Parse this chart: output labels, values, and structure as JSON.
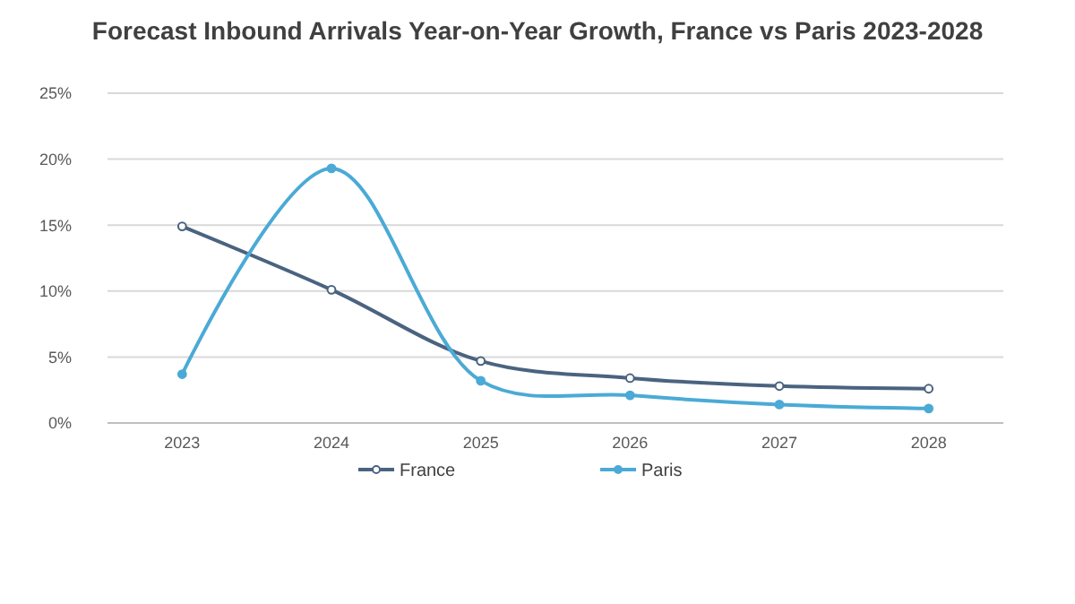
{
  "chart_data": {
    "type": "line",
    "title": "Forecast Inbound Arrivals Year-on-Year Growth, France vs Paris 2023-2028",
    "categories": [
      "2023",
      "2024",
      "2025",
      "2026",
      "2027",
      "2028"
    ],
    "series": [
      {
        "name": "France",
        "color": "#4a6380",
        "values": [
          14.9,
          10.1,
          4.7,
          3.4,
          2.8,
          2.6
        ]
      },
      {
        "name": "Paris",
        "color": "#4baad6",
        "values": [
          3.7,
          19.3,
          3.2,
          2.1,
          1.4,
          1.1
        ]
      }
    ],
    "ylim": [
      0,
      25
    ],
    "yticks": [
      {
        "value": 0,
        "label": "0%"
      },
      {
        "value": 5,
        "label": "5%"
      },
      {
        "value": 10,
        "label": "10%"
      },
      {
        "value": 15,
        "label": "15%"
      },
      {
        "value": 20,
        "label": "20%"
      },
      {
        "value": 25,
        "label": "25%"
      }
    ],
    "grid": "y",
    "legend": "bottom",
    "marker": "circle",
    "line_style": "solid"
  }
}
